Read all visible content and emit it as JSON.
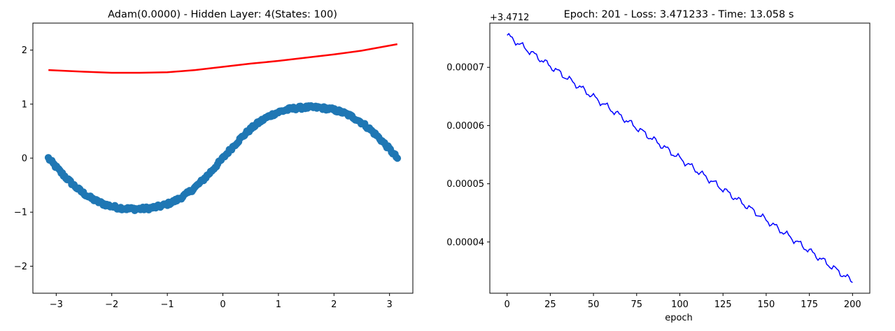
{
  "chart_data": [
    {
      "type": "scatter",
      "title": "Adam(0.0000) - Hidden Layer: 4(States: 100)",
      "xlabel": "",
      "ylabel": "",
      "xlim": [
        -3.42,
        3.42
      ],
      "ylim": [
        -2.5,
        2.5
      ],
      "xticks": [
        -3,
        -2,
        -1,
        0,
        1,
        2,
        3
      ],
      "xtick_labels": [
        "−3",
        "−2",
        "−1",
        "0",
        "1",
        "2",
        "3"
      ],
      "yticks": [
        -2,
        -1,
        0,
        1,
        2
      ],
      "ytick_labels": [
        "−2",
        "−1",
        "0",
        "1",
        "2"
      ],
      "grid": false,
      "series": [
        {
          "kind": "scatter",
          "color": "#1f77b4",
          "x_range": [
            -3.1416,
            3.1416
          ],
          "function": "sin(x)+0.06*sin(3x)+noise",
          "n_points": 300
        },
        {
          "kind": "line",
          "color": "#ff0000",
          "x": [
            -3.14,
            -2.5,
            -2.0,
            -1.5,
            -1.0,
            -0.5,
            0.0,
            0.5,
            1.0,
            1.5,
            2.0,
            2.5,
            3.14
          ],
          "y": [
            1.63,
            1.6,
            1.58,
            1.58,
            1.59,
            1.63,
            1.69,
            1.75,
            1.8,
            1.86,
            1.92,
            1.99,
            2.11
          ]
        }
      ]
    },
    {
      "type": "line",
      "title": "Epoch:  201 - Loss: 3.471233 - Time: 13.058 s",
      "xlabel": "epoch",
      "ylabel": "",
      "offset_label": "+3.4712",
      "xlim": [
        -10,
        210
      ],
      "ylim": [
        3.12e-05,
        7.76e-05
      ],
      "xticks": [
        0,
        25,
        50,
        75,
        100,
        125,
        150,
        175,
        200
      ],
      "xtick_labels": [
        "0",
        "25",
        "50",
        "75",
        "100",
        "125",
        "150",
        "175",
        "200"
      ],
      "yticks": [
        4e-05,
        5e-05,
        6e-05,
        7e-05
      ],
      "ytick_labels": [
        "0.00004",
        "0.00005",
        "0.00006",
        "0.00007"
      ],
      "grid": false,
      "series": [
        {
          "kind": "line",
          "color": "#0000ff",
          "x": [
            0,
            200
          ],
          "y": [
            7.55e-05,
            3.32e-05
          ],
          "n_points": 201
        }
      ]
    }
  ]
}
